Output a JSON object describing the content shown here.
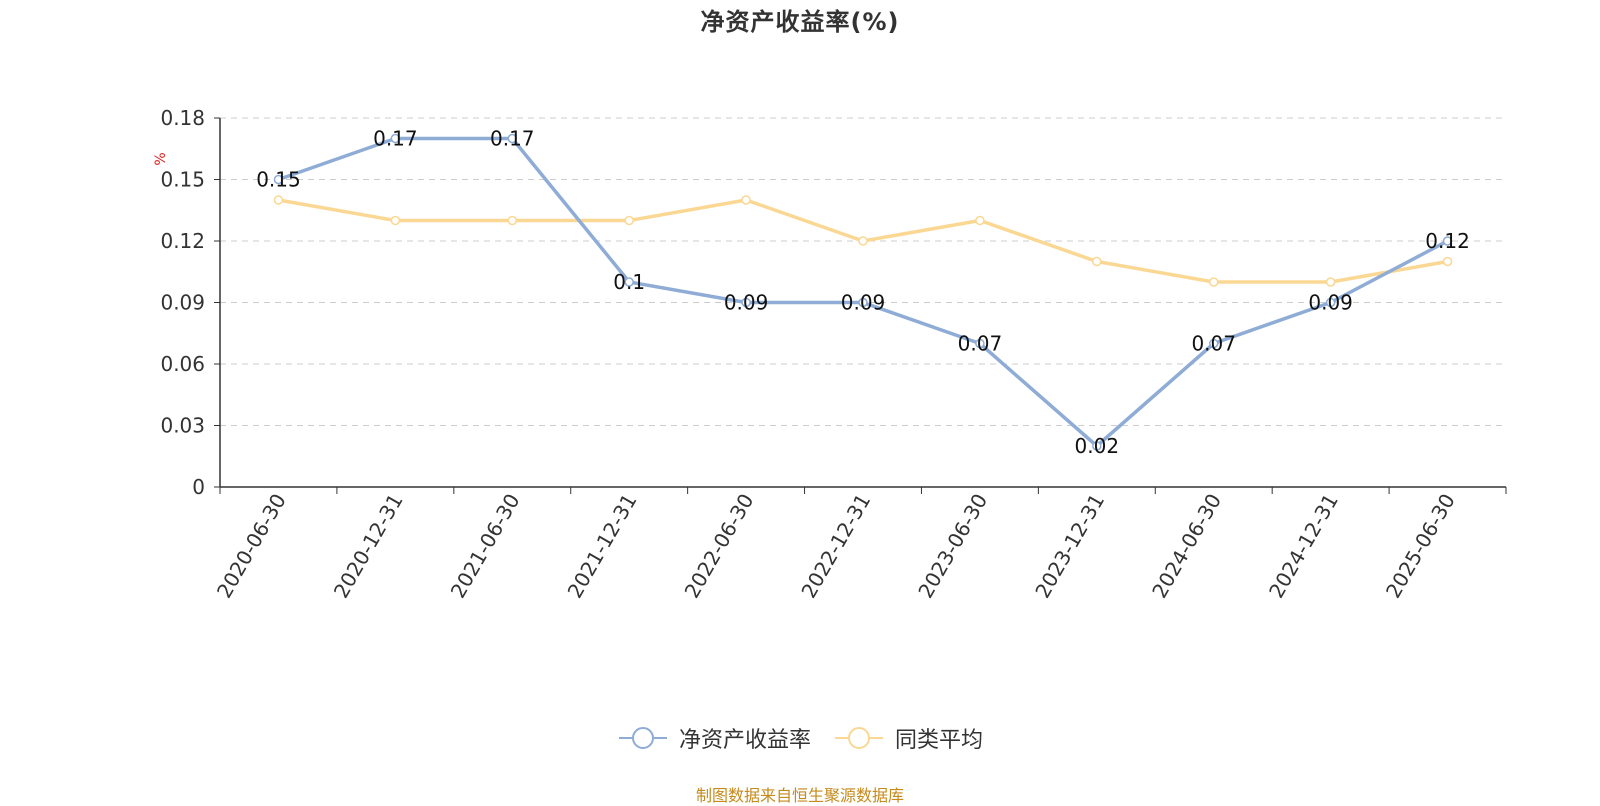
{
  "title": "净资产收益率(%)",
  "source": "制图数据来自恒生聚源数据库",
  "colors": {
    "series_1": "#8eacd6",
    "series_2": "#fad894",
    "unit_label": "#dd2222",
    "source": "#c58a1c"
  },
  "chart_data": {
    "type": "line",
    "title": "净资产收益率(%)",
    "ylabel": "%",
    "ylim": [
      0,
      0.18
    ],
    "yticks": [
      "0",
      "0.03",
      "0.06",
      "0.09",
      "0.12",
      "0.15",
      "0.18"
    ],
    "grid": true,
    "legend_position": "bottom-center",
    "categories": [
      "2020-06-30",
      "2020-12-31",
      "2021-06-30",
      "2021-12-31",
      "2022-06-30",
      "2022-12-31",
      "2023-06-30",
      "2023-12-31",
      "2024-06-30",
      "2024-12-31",
      "2025-06-30"
    ],
    "series": [
      {
        "name": "净资产收益率",
        "values": [
          0.15,
          0.17,
          0.17,
          0.1,
          0.09,
          0.09,
          0.07,
          0.02,
          0.07,
          0.09,
          0.12
        ],
        "labels": [
          "0.15",
          "0.17",
          "0.17",
          "0.1",
          "0.09",
          "0.09",
          "0.07",
          "0.02",
          "0.07",
          "0.09",
          "0.12"
        ]
      },
      {
        "name": "同类平均",
        "values": [
          0.14,
          0.13,
          0.13,
          0.13,
          0.14,
          0.12,
          0.13,
          0.11,
          0.1,
          0.1,
          0.11
        ]
      }
    ]
  }
}
